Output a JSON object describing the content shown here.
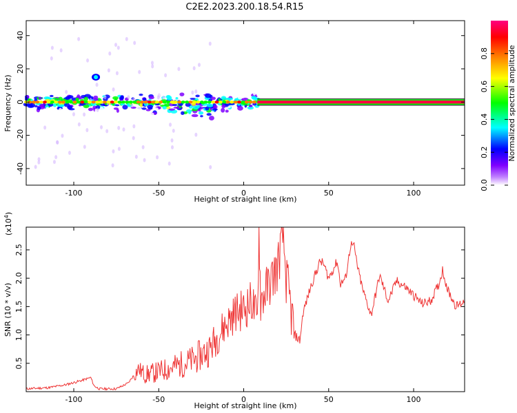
{
  "title": "C2E2.2023.200.18.54.R15",
  "chart_data": [
    {
      "type": "heatmap",
      "title": "C2E2.2023.200.18.54.R15",
      "xlabel": "Height of straight line (km)",
      "ylabel": "Frequency (Hz)",
      "xlim": [
        -128,
        130
      ],
      "ylim": [
        -50,
        49
      ],
      "xticks": [
        -100,
        -50,
        0,
        50,
        100
      ],
      "yticks": [
        -40,
        -20,
        0,
        20,
        40
      ],
      "colorbar": {
        "label": "Normalized spectral amplitude",
        "range": [
          0.0,
          1.0
        ],
        "ticks": [
          0.0,
          0.2,
          0.4,
          0.6,
          0.8
        ],
        "tick_labels": [
          "0.0",
          "0.2",
          "0.4",
          "0.6",
          "0.8"
        ],
        "colormap": [
          "#ffffff",
          "#7f00ff",
          "#0000ff",
          "#00ffff",
          "#00ff00",
          "#ffff00",
          "#ff8000",
          "#ff0000",
          "#ff0080"
        ]
      },
      "ridge": {
        "x_start": -128,
        "x_end": 130,
        "freq_hz": 0,
        "notes": "strong narrow component at 0 Hz for x > 8 km; broad scattered energy for x < 8 km with a second branch descending to about -10 Hz near x = -20 km and a blob near 15 Hz at x = -87 km"
      },
      "grid": false
    },
    {
      "type": "line",
      "xlabel": "Height of straight line (km)",
      "ylabel": "SNR (10 * v/v)",
      "scale_label": "(x10^4)",
      "xlim": [
        -128,
        130
      ],
      "ylim": [
        0,
        2.9
      ],
      "xticks": [
        -100,
        -50,
        0,
        50,
        100
      ],
      "yticks": [
        0.5,
        1.0,
        1.5,
        2.0,
        2.5
      ],
      "ytick_labels": [
        "0.5",
        "1.0",
        "1.5",
        "2.0",
        "2.5"
      ],
      "color": "#ee3333",
      "grid": false,
      "series": [
        {
          "x": [
            -128,
            -115,
            -105,
            -95,
            -90,
            -88,
            -85,
            -75,
            -68,
            -62,
            -58,
            -50,
            -40,
            -30,
            -20,
            -15,
            -10,
            -5,
            0,
            5,
            8,
            9,
            10,
            15,
            20,
            23,
            25,
            28,
            30,
            33,
            35,
            40,
            45,
            47,
            50,
            55,
            57,
            60,
            63,
            65,
            67,
            70,
            75,
            80,
            85,
            90,
            95,
            100,
            105,
            110,
            115,
            117,
            120,
            125,
            130
          ],
          "y": [
            0.05,
            0.07,
            0.12,
            0.2,
            0.25,
            0.1,
            0.05,
            0.05,
            0.15,
            0.4,
            0.3,
            0.35,
            0.45,
            0.55,
            0.75,
            1.0,
            1.2,
            1.4,
            1.45,
            1.6,
            1.2,
            2.9,
            1.6,
            1.9,
            2.2,
            2.8,
            2.0,
            1.4,
            1.0,
            0.9,
            1.4,
            1.9,
            2.3,
            2.25,
            2.0,
            2.3,
            1.9,
            2.0,
            2.6,
            2.55,
            2.2,
            1.8,
            1.35,
            2.05,
            1.6,
            1.95,
            1.85,
            1.7,
            1.55,
            1.6,
            1.9,
            2.15,
            1.8,
            1.5,
            1.6
          ]
        }
      ]
    }
  ]
}
